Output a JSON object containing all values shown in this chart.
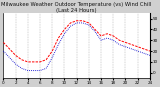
{
  "title": "Milwaukee Weather Outdoor Temperature (vs) Wind Chill (Last 24 Hours)",
  "bg_color": "#d0d0d0",
  "plot_bg_color": "#ffffff",
  "red_line_color": "#ff0000",
  "blue_line_color": "#0000cc",
  "grid_color": "#888888",
  "border_color": "#000000",
  "x_values": [
    0,
    1,
    2,
    3,
    4,
    5,
    6,
    7,
    8,
    9,
    10,
    11,
    12,
    13,
    14,
    15,
    16,
    17,
    18,
    19,
    20,
    21,
    22,
    23,
    24
  ],
  "temp_values": [
    28,
    22,
    16,
    12,
    10,
    10,
    10,
    12,
    20,
    32,
    40,
    46,
    48,
    48,
    46,
    40,
    34,
    36,
    34,
    30,
    28,
    26,
    24,
    22,
    20
  ],
  "windchill_values": [
    20,
    14,
    8,
    4,
    2,
    2,
    2,
    4,
    14,
    26,
    36,
    43,
    46,
    46,
    44,
    38,
    30,
    32,
    30,
    26,
    24,
    22,
    20,
    18,
    16
  ],
  "ylim": [
    -5,
    55
  ],
  "ytick_values": [
    0,
    10,
    20,
    30,
    40,
    50
  ],
  "ytick_labels": [
    "0",
    "10",
    "20",
    "30",
    "40",
    "50"
  ],
  "xlim": [
    0,
    24
  ],
  "xtick_positions": [
    0,
    2,
    4,
    6,
    8,
    10,
    12,
    14,
    16,
    18,
    20,
    22,
    24
  ],
  "xtick_labels": [
    "0",
    "2",
    "4",
    "6",
    "8",
    "10",
    "12",
    "14",
    "16",
    "18",
    "20",
    "22",
    "24"
  ],
  "title_fontsize": 3.8,
  "tick_fontsize": 3.0,
  "line_width": 0.7,
  "vgrid_positions": [
    2,
    4,
    6,
    8,
    10,
    12,
    14,
    16,
    18,
    20,
    22
  ]
}
